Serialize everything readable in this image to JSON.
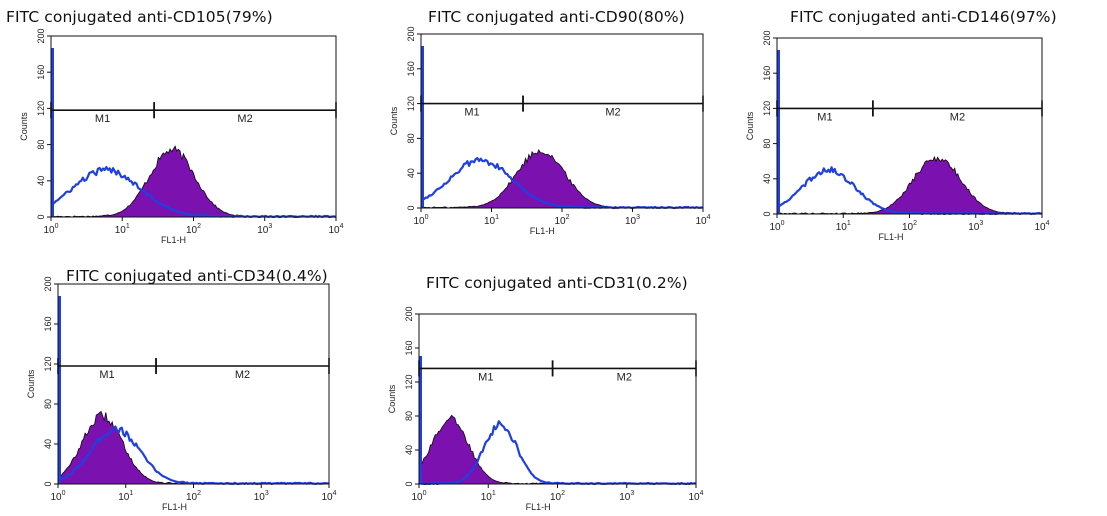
{
  "colors": {
    "isotype_curve": "#1f3fe0",
    "antibody_fill": "#7b12b0",
    "antibody_outline": "#1a0a1a",
    "marker_line": "#111111",
    "frame": "#111111"
  },
  "chart_data": [
    {
      "type": "area",
      "title": "FITC conjugated anti-CD105(79%)",
      "xlabel": "FL1-H",
      "ylabel": "Counts",
      "xscale": "log",
      "xlim": [
        1,
        10000
      ],
      "ylim": [
        0,
        200
      ],
      "x_ticks": [
        1,
        10,
        100,
        1000,
        10000
      ],
      "y_ticks": [
        0,
        40,
        80,
        120,
        160,
        200
      ],
      "markers": [
        {
          "name": "M1",
          "range": [
            1,
            28
          ],
          "y": 118
        },
        {
          "name": "M2",
          "range": [
            28,
            10000
          ],
          "y": 118
        }
      ],
      "series": [
        {
          "kind": "outline",
          "peaks": [
            {
              "center": 6,
              "height": 52,
              "width": 0.48
            }
          ]
        },
        {
          "kind": "filled",
          "peaks": [
            {
              "center": 50,
              "height": 74,
              "width": 0.32
            }
          ]
        }
      ]
    },
    {
      "type": "area",
      "title": "FITC conjugated anti-CD90(80%)",
      "xlabel": "FL1-H",
      "ylabel": "Counts",
      "xscale": "log",
      "xlim": [
        1,
        10000
      ],
      "ylim": [
        0,
        200
      ],
      "x_ticks": [
        1,
        10,
        100,
        1000,
        10000
      ],
      "y_ticks": [
        0,
        40,
        80,
        120,
        160,
        200
      ],
      "markers": [
        {
          "name": "M1",
          "range": [
            1,
            28
          ],
          "y": 120
        },
        {
          "name": "M2",
          "range": [
            28,
            10000
          ],
          "y": 120
        }
      ],
      "series": [
        {
          "kind": "outline",
          "peaks": [
            {
              "center": 7,
              "height": 55,
              "width": 0.44
            }
          ]
        },
        {
          "kind": "filled",
          "peaks": [
            {
              "center": 50,
              "height": 66,
              "width": 0.34
            }
          ]
        }
      ]
    },
    {
      "type": "area",
      "title": "FITC conjugated anti-CD146(97%)",
      "xlabel": "FL1-H",
      "ylabel": "Counts",
      "xscale": "log",
      "xlim": [
        1,
        10000
      ],
      "ylim": [
        0,
        200
      ],
      "x_ticks": [
        1,
        10,
        100,
        1000,
        10000
      ],
      "y_ticks": [
        0,
        40,
        80,
        120,
        160,
        200
      ],
      "markers": [
        {
          "name": "M1",
          "range": [
            1,
            28
          ],
          "y": 120
        },
        {
          "name": "M2",
          "range": [
            28,
            10000
          ],
          "y": 120
        }
      ],
      "series": [
        {
          "kind": "outline",
          "peaks": [
            {
              "center": 6,
              "height": 50,
              "width": 0.4
            }
          ]
        },
        {
          "kind": "filled",
          "peaks": [
            {
              "center": 260,
              "height": 64,
              "width": 0.36
            }
          ]
        }
      ]
    },
    {
      "type": "area",
      "title": "FITC conjugated anti-CD34(0.4%)",
      "xlabel": "FL1-H",
      "ylabel": "Counts",
      "xscale": "log",
      "xlim": [
        1,
        10000
      ],
      "ylim": [
        0,
        200
      ],
      "x_ticks": [
        1,
        10,
        100,
        1000,
        10000
      ],
      "y_ticks": [
        0,
        40,
        80,
        120,
        160,
        200
      ],
      "markers": [
        {
          "name": "M1",
          "range": [
            1,
            28
          ],
          "y": 118
        },
        {
          "name": "M2",
          "range": [
            28,
            10000
          ],
          "y": 118
        }
      ],
      "series": [
        {
          "kind": "outline",
          "peaks": [
            {
              "center": 7,
              "height": 55,
              "width": 0.36
            }
          ]
        },
        {
          "kind": "filled",
          "peaks": [
            {
              "center": 4.5,
              "height": 68,
              "width": 0.3
            }
          ]
        }
      ]
    },
    {
      "type": "area",
      "title": "FITC conjugated anti-CD31(0.2%)",
      "xlabel": "FL1-H",
      "ylabel": "Counts",
      "xscale": "log",
      "xlim": [
        1,
        10000
      ],
      "ylim": [
        0,
        200
      ],
      "x_ticks": [
        1,
        10,
        100,
        1000,
        10000
      ],
      "y_ticks": [
        0,
        40,
        80,
        120,
        160,
        200
      ],
      "markers": [
        {
          "name": "M1",
          "range": [
            1,
            85
          ],
          "y": 136
        },
        {
          "name": "M2",
          "range": [
            85,
            10000
          ],
          "y": 136
        }
      ],
      "series": [
        {
          "kind": "outline",
          "peaks": [
            {
              "center": 15,
              "height": 70,
              "width": 0.24
            }
          ]
        },
        {
          "kind": "filled",
          "peaks": [
            {
              "center": 2.8,
              "height": 76,
              "width": 0.27
            }
          ]
        }
      ]
    }
  ]
}
